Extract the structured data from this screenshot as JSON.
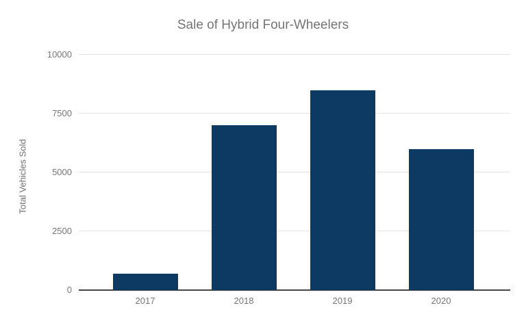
{
  "chart_data": {
    "type": "bar",
    "title": "Sale of Hybrid Four-Wheelers",
    "categories": [
      "2017",
      "2018",
      "2019",
      "2020"
    ],
    "values": [
      700,
      7000,
      8500,
      6000
    ],
    "xlabel": "",
    "ylabel": "Total Vehicles Sold",
    "ylim": [
      0,
      10000
    ],
    "yticks": [
      0,
      2500,
      5000,
      7500,
      10000
    ],
    "grid": "horizontal-only",
    "legend_position": "none",
    "colors": {
      "bar": "#0d3a63",
      "gridline": "#e3e3e3",
      "axis_line": "#454545",
      "title_text": "#757575",
      "tick_text": "#757575",
      "axis_title_text": "#6e6e6e",
      "background": "#ffffff"
    }
  }
}
